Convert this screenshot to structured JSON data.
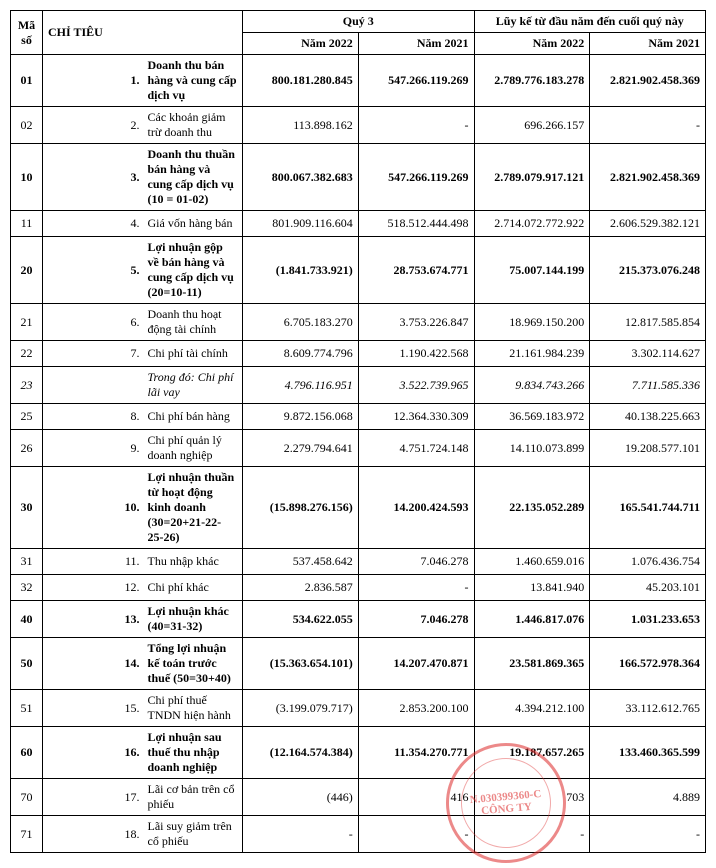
{
  "header": {
    "col1": "Mã số",
    "col2": "CHỈ TIÊU",
    "group1": "Quý 3",
    "group2": "Lũy kế từ đầu năm đến cuối quý này",
    "y2022": "Năm 2022",
    "y2021": "Năm 2021"
  },
  "rows": [
    {
      "ma": "01",
      "no": "1.",
      "label": "Doanh thu bán hàng và cung cấp dịch vụ",
      "q3_2022": "800.181.280.845",
      "q3_2021": "547.266.119.269",
      "ytd_2022": "2.789.776.183.278",
      "ytd_2021": "2.821.902.458.369",
      "bold": true
    },
    {
      "ma": "02",
      "no": "2.",
      "label": "Các khoản giảm trừ doanh thu",
      "q3_2022": "113.898.162",
      "q3_2021": "-",
      "ytd_2022": "696.266.157",
      "ytd_2021": "-",
      "bold": false
    },
    {
      "ma": "10",
      "no": "3.",
      "label": "Doanh thu thuần bán hàng và cung cấp dịch vụ (10 = 01-02)",
      "q3_2022": "800.067.382.683",
      "q3_2021": "547.266.119.269",
      "ytd_2022": "2.789.079.917.121",
      "ytd_2021": "2.821.902.458.369",
      "bold": true
    },
    {
      "ma": "11",
      "no": "4.",
      "label": "Giá vốn hàng bán",
      "q3_2022": "801.909.116.604",
      "q3_2021": "518.512.444.498",
      "ytd_2022": "2.714.072.772.922",
      "ytd_2021": "2.606.529.382.121",
      "bold": false
    },
    {
      "ma": "20",
      "no": "5.",
      "label": "Lợi nhuận gộp về bán hàng và cung cấp dịch vụ (20=10-11)",
      "q3_2022": "(1.841.733.921)",
      "q3_2021": "28.753.674.771",
      "ytd_2022": "75.007.144.199",
      "ytd_2021": "215.373.076.248",
      "bold": true
    },
    {
      "ma": "21",
      "no": "6.",
      "label": "Doanh thu hoạt động tài chính",
      "q3_2022": "6.705.183.270",
      "q3_2021": "3.753.226.847",
      "ytd_2022": "18.969.150.200",
      "ytd_2021": "12.817.585.854",
      "bold": false
    },
    {
      "ma": "22",
      "no": "7.",
      "label": "Chi phí tài chính",
      "q3_2022": "8.609.774.796",
      "q3_2021": "1.190.422.568",
      "ytd_2022": "21.161.984.239",
      "ytd_2021": "3.302.114.627",
      "bold": false
    },
    {
      "ma": "23",
      "no": "",
      "label": "Trong đó: Chi phí lãi vay",
      "q3_2022": "4.796.116.951",
      "q3_2021": "3.522.739.965",
      "ytd_2022": "9.834.743.266",
      "ytd_2021": "7.711.585.336",
      "bold": false,
      "italic": true
    },
    {
      "ma": "25",
      "no": "8.",
      "label": "Chi phí bán hàng",
      "q3_2022": "9.872.156.068",
      "q3_2021": "12.364.330.309",
      "ytd_2022": "36.569.183.972",
      "ytd_2021": "40.138.225.663",
      "bold": false
    },
    {
      "ma": "26",
      "no": "9.",
      "label": "Chi phí quản lý doanh nghiệp",
      "q3_2022": "2.279.794.641",
      "q3_2021": "4.751.724.148",
      "ytd_2022": "14.110.073.899",
      "ytd_2021": "19.208.577.101",
      "bold": false
    },
    {
      "ma": "30",
      "no": "10.",
      "label": "Lợi nhuận thuần từ hoạt động kinh doanh (30=20+21-22-25-26)",
      "q3_2022": "(15.898.276.156)",
      "q3_2021": "14.200.424.593",
      "ytd_2022": "22.135.052.289",
      "ytd_2021": "165.541.744.711",
      "bold": true
    },
    {
      "ma": "31",
      "no": "11.",
      "label": "Thu nhập khác",
      "q3_2022": "537.458.642",
      "q3_2021": "7.046.278",
      "ytd_2022": "1.460.659.016",
      "ytd_2021": "1.076.436.754",
      "bold": false
    },
    {
      "ma": "32",
      "no": "12.",
      "label": "Chi phí khác",
      "q3_2022": "2.836.587",
      "q3_2021": "-",
      "ytd_2022": "13.841.940",
      "ytd_2021": "45.203.101",
      "bold": false
    },
    {
      "ma": "40",
      "no": "13.",
      "label": "Lợi nhuận khác (40=31-32)",
      "q3_2022": "534.622.055",
      "q3_2021": "7.046.278",
      "ytd_2022": "1.446.817.076",
      "ytd_2021": "1.031.233.653",
      "bold": true
    },
    {
      "ma": "50",
      "no": "14.",
      "label": "Tổng lợi nhuận kế toán trước thuế (50=30+40)",
      "q3_2022": "(15.363.654.101)",
      "q3_2021": "14.207.470.871",
      "ytd_2022": "23.581.869.365",
      "ytd_2021": "166.572.978.364",
      "bold": true
    },
    {
      "ma": "51",
      "no": "15.",
      "label": "Chi phí thuế TNDN hiện hành",
      "q3_2022": "(3.199.079.717)",
      "q3_2021": "2.853.200.100",
      "ytd_2022": "4.394.212.100",
      "ytd_2021": "33.112.612.765",
      "bold": false
    },
    {
      "ma": "60",
      "no": "16.",
      "label": "Lợi nhuận sau thuế thu nhập doanh nghiệp",
      "q3_2022": "(12.164.574.384)",
      "q3_2021": "11.354.270.771",
      "ytd_2022": "19.187.657.265",
      "ytd_2021": "133.460.365.599",
      "bold": true
    },
    {
      "ma": "70",
      "no": "17.",
      "label": "Lãi cơ bản trên cổ phiếu",
      "q3_2022": "(446)",
      "q3_2021": "416",
      "ytd_2022": "703",
      "ytd_2021": "4.889",
      "bold": false
    },
    {
      "ma": "71",
      "no": "18.",
      "label": "Lãi suy giảm trên cổ phiếu",
      "q3_2022": "-",
      "q3_2021": "-",
      "ytd_2022": "-",
      "ytd_2021": "-",
      "bold": false
    }
  ],
  "stamp": {
    "line1": "N.030399360-C",
    "line2": "CÔNG TY"
  }
}
